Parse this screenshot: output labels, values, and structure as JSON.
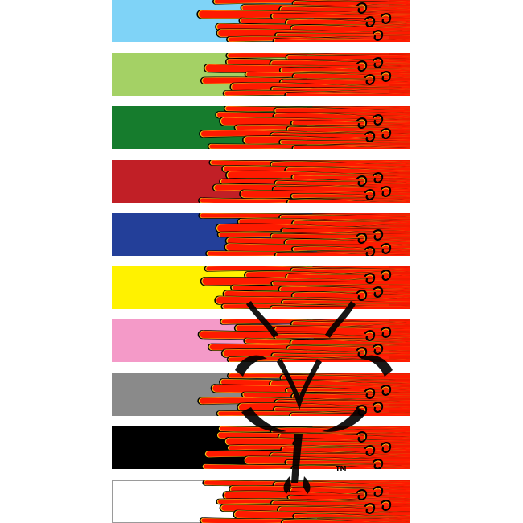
{
  "swatches": [
    {
      "color_name": "light-blue",
      "base_color": "#7fd3f7"
    },
    {
      "color_name": "lime-green",
      "base_color": "#a4d165"
    },
    {
      "color_name": "dark-green",
      "base_color": "#167c2d"
    },
    {
      "color_name": "crimson",
      "base_color": "#c11f26"
    },
    {
      "color_name": "royal-blue",
      "base_color": "#233f99"
    },
    {
      "color_name": "yellow",
      "base_color": "#fff200"
    },
    {
      "color_name": "pink",
      "base_color": "#f49ac8"
    },
    {
      "color_name": "gray",
      "base_color": "#8a8a8a"
    },
    {
      "color_name": "black",
      "base_color": "#000000"
    },
    {
      "color_name": "white",
      "base_color": "#ffffff"
    }
  ],
  "flame_colors": {
    "fill": "#ff1a00",
    "pinstripe": "#f5c518",
    "outline": "#000000",
    "tail": "#000000"
  },
  "emblem": {
    "icon": "tribal-emblem-icon",
    "color": "#000000",
    "trademark": "TM"
  }
}
